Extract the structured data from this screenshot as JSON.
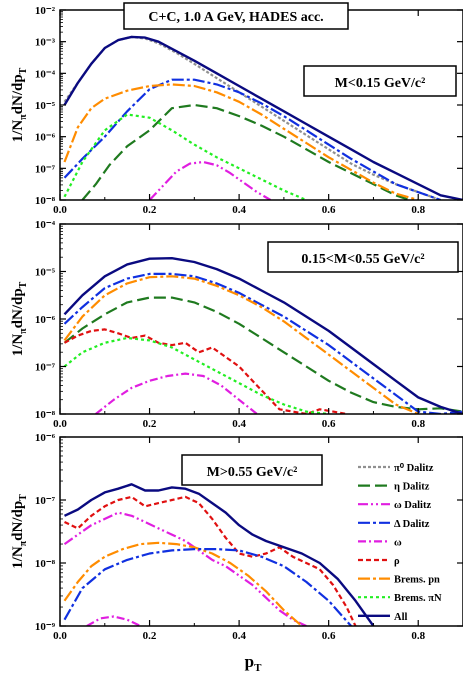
{
  "title": "C+C, 1.0 A GeV, HADES acc.",
  "xlabel": "p",
  "xlabel_sub": "T",
  "ylabel": "1/N",
  "ylabel_sub": "π",
  "ylabel_rest": "dN/dp",
  "ylabel_sub2": "T",
  "colors": {
    "pi0_dalitz": "#909090",
    "eta_dalitz": "#1f7a1f",
    "omega_dalitz": "#e01ee0",
    "delta_dalitz": "#1030e0",
    "omega": "#e01ee0",
    "rho": "#e01010",
    "brems_pn": "#ff8c00",
    "brems_piN": "#22ee22",
    "all": "#0a0a80"
  },
  "legend": [
    {
      "key": "pi0_dalitz",
      "label": "π⁰ Dalitz"
    },
    {
      "key": "eta_dalitz",
      "label": "η Dalitz"
    },
    {
      "key": "omega_dalitz",
      "label": "ω Dalitz"
    },
    {
      "key": "delta_dalitz",
      "label": "Δ Dalitz"
    },
    {
      "key": "omega",
      "label": "ω"
    },
    {
      "key": "rho",
      "label": "ρ"
    },
    {
      "key": "brems_pn",
      "label": "Brems. pn"
    },
    {
      "key": "brems_piN",
      "label": "Brems. πN"
    },
    {
      "key": "all",
      "label": "All"
    }
  ],
  "chart_data": [
    {
      "type": "line",
      "label": "M<0.15 GeV/c²",
      "xlim": [
        0,
        0.9
      ],
      "ylim_exp": [
        -8,
        -2
      ],
      "yscale": "log",
      "xticks": [
        "0.0",
        "0.2",
        "0.4",
        "0.6",
        "0.8"
      ],
      "yticks": [
        "10⁻⁸",
        "10⁻⁷",
        "10⁻⁶",
        "10⁻⁵",
        "10⁻⁴",
        "10⁻³",
        "10⁻²"
      ],
      "series": [
        {
          "key": "pi0_dalitz",
          "x": [
            0.01,
            0.04,
            0.07,
            0.1,
            0.13,
            0.16,
            0.19,
            0.22,
            0.26,
            0.3,
            0.35,
            0.4,
            0.45,
            0.5,
            0.55,
            0.6,
            0.65,
            0.7,
            0.75,
            0.8,
            0.85
          ],
          "log10y": [
            -4.9,
            -4.3,
            -3.7,
            -3.2,
            -2.95,
            -2.85,
            -2.9,
            -3.05,
            -3.35,
            -3.7,
            -4.15,
            -4.6,
            -5.05,
            -5.5,
            -5.95,
            -6.4,
            -6.85,
            -7.2,
            -7.5,
            -7.75,
            -8.0
          ]
        },
        {
          "key": "eta_dalitz",
          "x": [
            0.05,
            0.08,
            0.11,
            0.15,
            0.2,
            0.25,
            0.3,
            0.35,
            0.4,
            0.45,
            0.5,
            0.55,
            0.6,
            0.65,
            0.7,
            0.75,
            0.78
          ],
          "log10y": [
            -8.0,
            -7.5,
            -6.9,
            -6.3,
            -5.8,
            -5.1,
            -5.0,
            -5.1,
            -5.35,
            -5.65,
            -6.0,
            -6.4,
            -6.8,
            -7.15,
            -7.5,
            -7.85,
            -8.0
          ]
        },
        {
          "key": "omega_dalitz",
          "x": [
            0.2,
            0.23,
            0.26,
            0.29,
            0.32,
            0.35,
            0.38,
            0.41,
            0.44,
            0.47
          ],
          "log10y": [
            -8.0,
            -7.55,
            -7.1,
            -6.85,
            -6.8,
            -6.9,
            -7.15,
            -7.45,
            -7.75,
            -8.0
          ]
        },
        {
          "key": "delta_dalitz",
          "x": [
            0.01,
            0.05,
            0.1,
            0.15,
            0.2,
            0.25,
            0.3,
            0.35,
            0.4,
            0.45,
            0.5,
            0.55,
            0.6,
            0.65,
            0.7,
            0.75,
            0.8,
            0.85
          ],
          "log10y": [
            -7.3,
            -6.7,
            -6.0,
            -5.2,
            -4.5,
            -4.2,
            -4.2,
            -4.35,
            -4.6,
            -4.95,
            -5.35,
            -5.8,
            -6.25,
            -6.7,
            -7.1,
            -7.5,
            -7.75,
            -8.0
          ]
        },
        {
          "key": "brems_pn",
          "x": [
            0.01,
            0.04,
            0.07,
            0.1,
            0.15,
            0.2,
            0.25,
            0.3,
            0.35,
            0.4,
            0.45,
            0.5,
            0.55,
            0.6,
            0.65,
            0.7,
            0.75,
            0.8
          ],
          "log10y": [
            -6.8,
            -5.7,
            -5.1,
            -4.8,
            -4.55,
            -4.4,
            -4.35,
            -4.4,
            -4.6,
            -4.9,
            -5.3,
            -5.75,
            -6.2,
            -6.65,
            -7.05,
            -7.45,
            -7.8,
            -8.0
          ]
        },
        {
          "key": "brems_piN",
          "x": [
            0.01,
            0.05,
            0.1,
            0.15,
            0.2,
            0.25,
            0.3,
            0.35,
            0.4,
            0.45,
            0.5,
            0.55
          ],
          "log10y": [
            -7.9,
            -6.8,
            -5.8,
            -5.3,
            -5.4,
            -5.8,
            -6.25,
            -6.65,
            -7.0,
            -7.35,
            -7.7,
            -8.0
          ]
        },
        {
          "key": "all",
          "x": [
            0.01,
            0.04,
            0.07,
            0.1,
            0.13,
            0.16,
            0.19,
            0.22,
            0.26,
            0.3,
            0.35,
            0.4,
            0.45,
            0.5,
            0.55,
            0.6,
            0.65,
            0.7,
            0.75,
            0.8,
            0.85,
            0.9
          ],
          "log10y": [
            -5.0,
            -4.3,
            -3.7,
            -3.2,
            -2.95,
            -2.85,
            -2.87,
            -3.0,
            -3.3,
            -3.6,
            -4.0,
            -4.4,
            -4.8,
            -5.2,
            -5.6,
            -6.0,
            -6.4,
            -6.8,
            -7.15,
            -7.5,
            -7.85,
            -8.0
          ]
        }
      ]
    },
    {
      "type": "line",
      "label": "0.15<M<0.55 GeV/c²",
      "xlim": [
        0,
        0.9
      ],
      "ylim_exp": [
        -8,
        -4
      ],
      "yscale": "log",
      "xticks": [
        "0.0",
        "0.2",
        "0.4",
        "0.6",
        "0.8"
      ],
      "yticks": [
        "10⁻⁸",
        "10⁻⁷",
        "10⁻⁶",
        "10⁻⁵",
        "10⁻⁴"
      ],
      "series": [
        {
          "key": "eta_dalitz",
          "x": [
            0.01,
            0.05,
            0.1,
            0.15,
            0.2,
            0.25,
            0.3,
            0.35,
            0.4,
            0.45,
            0.5,
            0.55,
            0.6,
            0.65,
            0.7,
            0.75,
            0.8,
            0.85,
            0.9
          ],
          "log10y": [
            -6.5,
            -6.2,
            -5.9,
            -5.65,
            -5.55,
            -5.55,
            -5.65,
            -5.85,
            -6.1,
            -6.4,
            -6.7,
            -7.0,
            -7.3,
            -7.55,
            -7.75,
            -7.85,
            -7.9,
            -7.88,
            -7.95
          ]
        },
        {
          "key": "omega",
          "x": [
            0.08,
            0.12,
            0.16,
            0.2,
            0.24,
            0.28,
            0.32,
            0.36,
            0.4,
            0.44
          ],
          "log10y": [
            -8.0,
            -7.7,
            -7.45,
            -7.3,
            -7.2,
            -7.15,
            -7.2,
            -7.4,
            -7.7,
            -8.0
          ]
        },
        {
          "key": "rho",
          "x": [
            0.01,
            0.04,
            0.07,
            0.1,
            0.13,
            0.16,
            0.19,
            0.22,
            0.25,
            0.28,
            0.31,
            0.34,
            0.37,
            0.4,
            0.43,
            0.46,
            0.49,
            0.52,
            0.55,
            0.58,
            0.61,
            0.64
          ],
          "log10y": [
            -6.5,
            -6.35,
            -6.25,
            -6.22,
            -6.3,
            -6.4,
            -6.35,
            -6.5,
            -6.55,
            -6.5,
            -6.7,
            -6.6,
            -6.8,
            -7.0,
            -7.3,
            -7.6,
            -7.9,
            -7.95,
            -8.0,
            -7.9,
            -7.95,
            -8.0
          ]
        },
        {
          "key": "delta_dalitz",
          "x": [
            0.01,
            0.05,
            0.1,
            0.15,
            0.2,
            0.25,
            0.3,
            0.35,
            0.4,
            0.45,
            0.5,
            0.55,
            0.6,
            0.65,
            0.7,
            0.75,
            0.8,
            0.85,
            0.9
          ],
          "log10y": [
            -6.1,
            -5.75,
            -5.35,
            -5.15,
            -5.05,
            -5.05,
            -5.1,
            -5.25,
            -5.45,
            -5.7,
            -5.95,
            -6.25,
            -6.55,
            -6.9,
            -7.25,
            -7.6,
            -7.95,
            -8.0,
            -7.95
          ]
        },
        {
          "key": "brems_pn",
          "x": [
            0.01,
            0.05,
            0.1,
            0.15,
            0.2,
            0.25,
            0.3,
            0.35,
            0.4,
            0.45,
            0.5,
            0.55,
            0.6,
            0.65,
            0.7,
            0.75,
            0.8
          ],
          "log10y": [
            -6.45,
            -5.95,
            -5.5,
            -5.25,
            -5.12,
            -5.1,
            -5.15,
            -5.3,
            -5.5,
            -5.75,
            -6.05,
            -6.4,
            -6.75,
            -7.1,
            -7.45,
            -7.8,
            -8.0
          ]
        },
        {
          "key": "brems_piN",
          "x": [
            0.01,
            0.05,
            0.1,
            0.15,
            0.2,
            0.25,
            0.3,
            0.35,
            0.4,
            0.45,
            0.5,
            0.55,
            0.6
          ],
          "log10y": [
            -7.0,
            -6.7,
            -6.5,
            -6.4,
            -6.45,
            -6.6,
            -6.85,
            -7.1,
            -7.35,
            -7.6,
            -7.8,
            -7.95,
            -8.0
          ]
        },
        {
          "key": "all",
          "x": [
            0.01,
            0.05,
            0.1,
            0.15,
            0.2,
            0.25,
            0.3,
            0.35,
            0.4,
            0.45,
            0.5,
            0.55,
            0.6,
            0.65,
            0.7,
            0.75,
            0.8,
            0.85,
            0.9
          ],
          "log10y": [
            -5.9,
            -5.5,
            -5.1,
            -4.85,
            -4.73,
            -4.72,
            -4.8,
            -4.95,
            -5.15,
            -5.4,
            -5.65,
            -5.95,
            -6.25,
            -6.6,
            -6.95,
            -7.3,
            -7.65,
            -7.85,
            -8.0
          ]
        }
      ]
    },
    {
      "type": "line",
      "label": "M>0.55 GeV/c²",
      "xlim": [
        0,
        0.9
      ],
      "ylim_exp": [
        -9,
        -6
      ],
      "yscale": "log",
      "xticks": [
        "0.0",
        "0.2",
        "0.4",
        "0.6",
        "0.8"
      ],
      "yticks": [
        "10⁻⁹",
        "10⁻⁸",
        "10⁻⁷",
        "10⁻⁶"
      ],
      "series": [
        {
          "key": "omega",
          "x": [
            0.06,
            0.09,
            0.12,
            0.15,
            0.18
          ],
          "log10y": [
            -9.0,
            -8.88,
            -8.85,
            -8.9,
            -9.0
          ]
        },
        {
          "key": "omega_dalitz",
          "x": [
            0.01,
            0.04,
            0.07,
            0.1,
            0.13,
            0.16,
            0.19,
            0.22,
            0.25,
            0.28,
            0.31,
            0.34,
            0.37,
            0.4,
            0.43,
            0.46,
            0.49,
            0.52,
            0.55
          ],
          "log10y": [
            -7.7,
            -7.55,
            -7.4,
            -7.3,
            -7.2,
            -7.25,
            -7.35,
            -7.45,
            -7.55,
            -7.65,
            -7.8,
            -7.95,
            -8.05,
            -8.2,
            -8.35,
            -8.55,
            -8.75,
            -8.9,
            -9.0
          ]
        },
        {
          "key": "rho",
          "x": [
            0.01,
            0.04,
            0.07,
            0.1,
            0.13,
            0.16,
            0.19,
            0.22,
            0.25,
            0.28,
            0.31,
            0.34,
            0.37,
            0.4,
            0.43,
            0.46,
            0.49,
            0.52,
            0.55,
            0.58,
            0.61,
            0.64,
            0.66
          ],
          "log10y": [
            -7.35,
            -7.45,
            -7.25,
            -7.1,
            -7.0,
            -6.95,
            -7.1,
            -7.05,
            -7.0,
            -6.95,
            -7.05,
            -7.3,
            -7.6,
            -7.85,
            -7.9,
            -7.85,
            -7.75,
            -7.9,
            -8.0,
            -8.1,
            -8.35,
            -8.7,
            -9.0
          ]
        },
        {
          "key": "brems_pn",
          "x": [
            0.01,
            0.04,
            0.07,
            0.1,
            0.14,
            0.18,
            0.22,
            0.26,
            0.3,
            0.34,
            0.38,
            0.42,
            0.46,
            0.5,
            0.54
          ],
          "log10y": [
            -8.6,
            -8.3,
            -8.05,
            -7.9,
            -7.78,
            -7.7,
            -7.68,
            -7.7,
            -7.75,
            -7.85,
            -8.0,
            -8.2,
            -8.45,
            -8.75,
            -9.0
          ]
        },
        {
          "key": "delta_dalitz",
          "x": [
            0.01,
            0.05,
            0.1,
            0.15,
            0.2,
            0.25,
            0.3,
            0.35,
            0.4,
            0.45,
            0.5,
            0.55,
            0.6,
            0.65
          ],
          "log10y": [
            -8.9,
            -8.4,
            -8.1,
            -7.95,
            -7.85,
            -7.8,
            -7.78,
            -7.78,
            -7.8,
            -7.9,
            -8.05,
            -8.3,
            -8.6,
            -9.0
          ]
        },
        {
          "key": "all",
          "x": [
            0.01,
            0.04,
            0.07,
            0.1,
            0.13,
            0.16,
            0.19,
            0.22,
            0.25,
            0.28,
            0.31,
            0.34,
            0.37,
            0.4,
            0.43,
            0.46,
            0.5,
            0.54,
            0.58,
            0.62,
            0.66,
            0.7
          ],
          "log10y": [
            -7.25,
            -7.15,
            -7.0,
            -6.88,
            -6.82,
            -6.75,
            -6.85,
            -6.85,
            -6.8,
            -6.82,
            -6.9,
            -7.05,
            -7.2,
            -7.4,
            -7.55,
            -7.65,
            -7.75,
            -7.85,
            -8.0,
            -8.25,
            -8.6,
            -9.0
          ]
        }
      ]
    }
  ]
}
